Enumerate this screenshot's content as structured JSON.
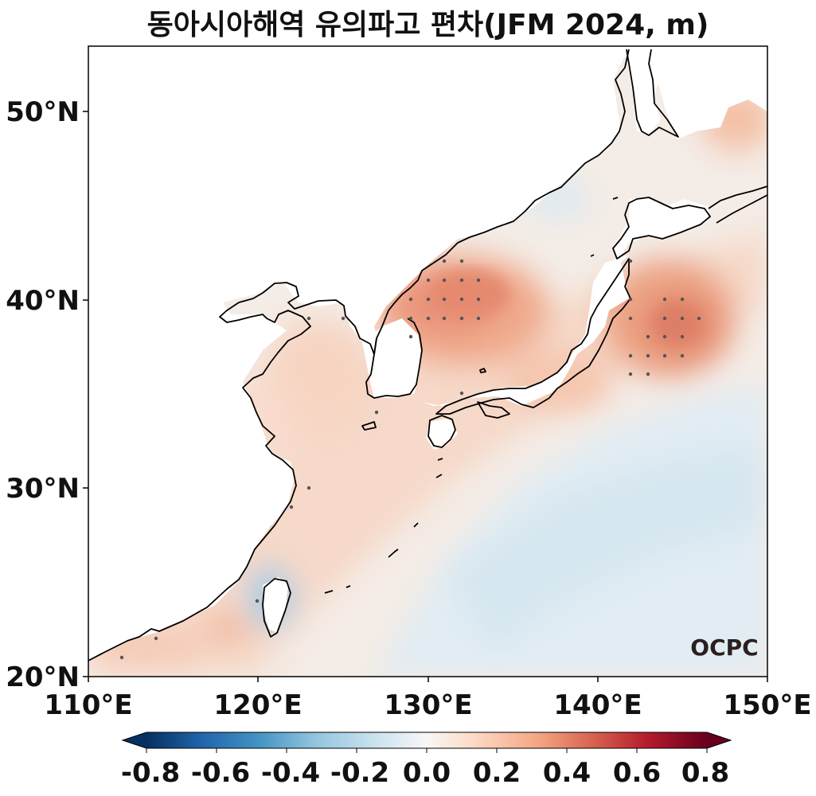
{
  "title": "동아시아해역 유의파고 편차(JFM 2024, m)",
  "map": {
    "lon_range": [
      110,
      150
    ],
    "lat_range": [
      20,
      53.5
    ],
    "x_ticks": [
      "110°E",
      "120°E",
      "130°E",
      "140°E",
      "150°E"
    ],
    "y_ticks": [
      "20°N",
      "30°N",
      "40°N",
      "50°N"
    ],
    "colormap": "RdBu_r",
    "land_color": "#ffffff",
    "coastline_color": "#000000",
    "stipple_note_color": "#555555"
  },
  "colorbar": {
    "ticks": [
      "-0.8",
      "-0.6",
      "-0.4",
      "-0.2",
      "0.0",
      "0.2",
      "0.4",
      "0.6",
      "0.8"
    ],
    "range": [
      -0.8,
      0.8
    ],
    "extend": "both",
    "colors": [
      "#053061",
      "#2166ac",
      "#4393c3",
      "#92c5de",
      "#d1e5f0",
      "#f7f7f7",
      "#fddbc7",
      "#f4a582",
      "#d6604d",
      "#b2182b",
      "#67001f"
    ]
  },
  "logo": {
    "text": "OCPC"
  }
}
